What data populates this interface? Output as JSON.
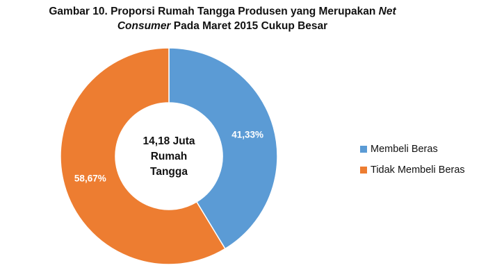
{
  "chart_data": {
    "type": "pie",
    "variant": "donut",
    "title": {
      "prefix": "Gambar 10. Proporsi Rumah Tangga Produsen yang Merupakan ",
      "italic_1": "Net",
      "italic_2": "Consumer",
      "suffix": " Pada Maret 2015 Cukup Besar"
    },
    "center_label": [
      "14,18 Juta",
      "Rumah",
      "Tangga"
    ],
    "slices": [
      {
        "name": "Membeli Beras",
        "value": 41.33,
        "label": "41,33%",
        "color": "#5b9bd5"
      },
      {
        "name": "Tidak Membeli Beras",
        "value": 58.67,
        "label": "58,67%",
        "color": "#ed7d31"
      }
    ],
    "legend_position": "right"
  }
}
